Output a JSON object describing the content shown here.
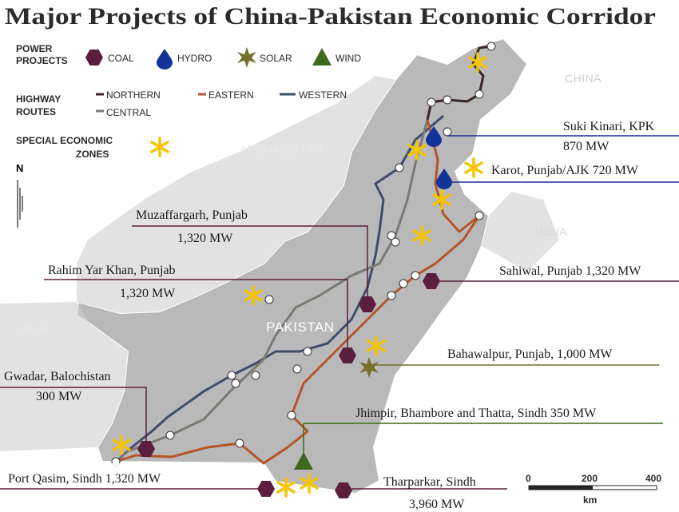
{
  "title": "Major Projects of China-Pakistan Economic Corridor",
  "legend": {
    "power_title": [
      "POWER",
      "PROJECTS"
    ],
    "power_items": [
      "COAL",
      "HYDRO",
      "SOLAR",
      "WIND"
    ],
    "routes_title": [
      "HIGHWAY",
      "ROUTES"
    ],
    "routes": [
      "NORTHERN",
      "EASTERN",
      "WESTERN",
      "CENTRAL"
    ],
    "sez_title": [
      "SPECIAL ECONOMIC",
      "ZONES"
    ]
  },
  "north": "N",
  "countries": [
    "CHINA",
    "AFGHANISTAN",
    "INDIA",
    "IRAN",
    "PAKISTAN"
  ],
  "projects": [
    {
      "lines": [
        "Suki Kinari, KPK",
        "870 MW"
      ]
    },
    {
      "lines": [
        "Karot, Punjab/AJK 720 MW"
      ]
    },
    {
      "lines": [
        "Muzaffargarh, Punjab",
        "1,320 MW"
      ]
    },
    {
      "lines": [
        "Rahim Yar Khan, Punjab",
        "1,320 MW"
      ]
    },
    {
      "lines": [
        "Sahiwal, Punjab 1,320 MW"
      ]
    },
    {
      "lines": [
        "Bahawalpur, Punjab, 1,000 MW"
      ]
    },
    {
      "lines": [
        "Gwadar, Balochistan",
        "300 MW"
      ]
    },
    {
      "lines": [
        "Jhimpir, Bhambore and Thatta, Sindh 350 MW"
      ]
    },
    {
      "lines": [
        "Port Qasim, Sindh 1,320 MW"
      ]
    },
    {
      "lines": [
        "Tharparkar, Sindh",
        "3,960 MW"
      ]
    }
  ],
  "scale": {
    "ticks": [
      "0",
      "200",
      "400"
    ],
    "unit": "km"
  }
}
